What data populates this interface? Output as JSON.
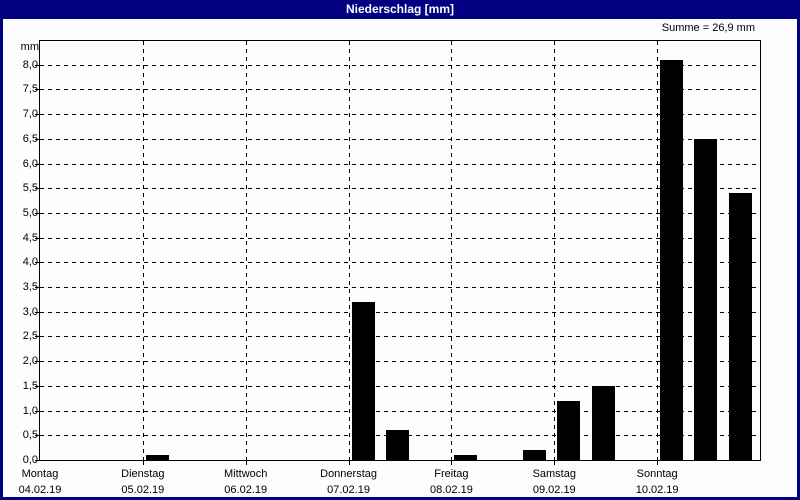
{
  "window": {
    "title": "Niederschlag [mm]"
  },
  "header": {
    "sum_label": "Summe = 26,9 mm"
  },
  "chart_data": {
    "type": "bar",
    "title": "Niederschlag [mm]",
    "ylabel": "mm",
    "sum_annotation": "Summe = 26,9 mm",
    "sum_value_mm": 26.9,
    "ylim": [
      0,
      8.5
    ],
    "ytick_interval": 0.5,
    "ytick_label_max": 8.0,
    "decimal_separator": ",",
    "grid": true,
    "legend": "none",
    "bars_per_day": 3,
    "bar_color": "#000000",
    "frame_color": "#000080",
    "title_text_color": "#ffffff",
    "plot_background": "#fdfdfd",
    "days": [
      {
        "label": "Montag",
        "date": "04.02.19",
        "values": [
          0,
          0,
          0
        ]
      },
      {
        "label": "Dienstag",
        "date": "05.02.19",
        "values": [
          0.1,
          0,
          0
        ]
      },
      {
        "label": "Mittwoch",
        "date": "06.02.19",
        "values": [
          0,
          0,
          0
        ]
      },
      {
        "label": "Donnerstag",
        "date": "07.02.19",
        "values": [
          3.2,
          0.6,
          0
        ]
      },
      {
        "label": "Freitag",
        "date": "08.02.19",
        "values": [
          0.1,
          0,
          0.2
        ]
      },
      {
        "label": "Samstag",
        "date": "09.02.19",
        "values": [
          1.2,
          1.5,
          0
        ]
      },
      {
        "label": "Sonntag",
        "date": "10.02.19",
        "values": [
          8.1,
          6.5,
          5.4
        ]
      }
    ]
  }
}
